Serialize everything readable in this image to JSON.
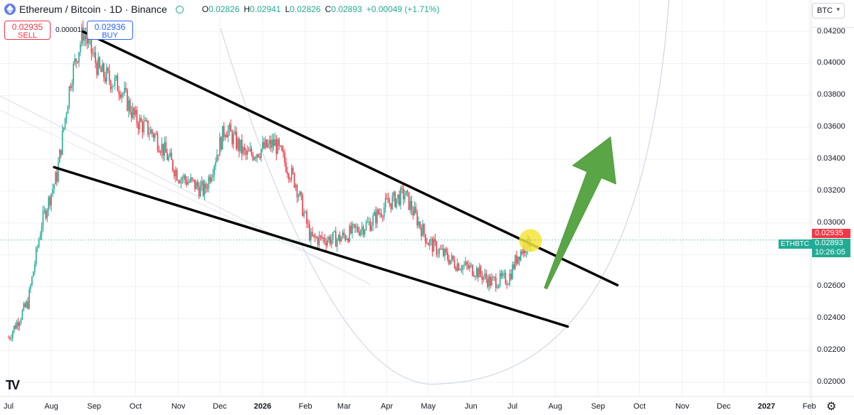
{
  "header": {
    "symbol_title": "Ethereum / Bitcoin · 1D · Binance",
    "ohlc": {
      "o_label": "O",
      "o": "0.02826",
      "h_label": "H",
      "h": "0.02941",
      "l_label": "L",
      "l": "0.02826",
      "c_label": "C",
      "c": "0.02893",
      "change": "+0.00049 (+1.71%)"
    },
    "icon": "ethereum-icon"
  },
  "trade": {
    "sell_price": "0.02935",
    "sell_label": "SELL",
    "spread": "0.00001",
    "buy_price": "0.02936",
    "buy_label": "BUY"
  },
  "currency": {
    "label": "BTC"
  },
  "price_tags": {
    "symbol": "ETHBTC",
    "last": "0.02893",
    "countdown": "10:26:05",
    "ask": "0.02935"
  },
  "colors": {
    "up": "#22ab94",
    "down": "#f23645",
    "arrow": "#5aa646",
    "highlight": "#f5e53a",
    "grid": "#eef1f6",
    "trendline": "#000000"
  },
  "chart_data": {
    "type": "candlestick",
    "title": "Ethereum / Bitcoin · 1D · Binance",
    "y_axis": {
      "ticks": [
        "0.04200",
        "0.04000",
        "0.03800",
        "0.03600",
        "0.03400",
        "0.03200",
        "0.03000",
        "0.02800",
        "0.02600",
        "0.02400",
        "0.02200",
        "0.02000"
      ],
      "range": [
        0.0192,
        0.0439
      ]
    },
    "x_axis": {
      "ticks": [
        "Jul",
        "Aug",
        "Sep",
        "Oct",
        "Nov",
        "Dec",
        "2026",
        "Feb",
        "Mar",
        "Apr",
        "May",
        "Jun",
        "Jul",
        "Aug",
        "Sep",
        "Oct",
        "Nov",
        "Dec",
        "2027",
        "Feb"
      ],
      "start": "2025-07-01"
    },
    "series": [
      {
        "name": "ETHBTC",
        "key_points": [
          {
            "date": "2025-07-01",
            "close": 0.0228
          },
          {
            "date": "2025-07-15",
            "close": 0.025
          },
          {
            "date": "2025-07-25",
            "close": 0.03
          },
          {
            "date": "2025-08-05",
            "close": 0.033
          },
          {
            "date": "2025-08-15",
            "close": 0.039
          },
          {
            "date": "2025-08-24",
            "close": 0.042
          },
          {
            "date": "2025-09-05",
            "close": 0.0395
          },
          {
            "date": "2025-09-20",
            "close": 0.0385
          },
          {
            "date": "2025-10-01",
            "close": 0.0365
          },
          {
            "date": "2025-10-15",
            "close": 0.0355
          },
          {
            "date": "2025-11-01",
            "close": 0.033
          },
          {
            "date": "2025-11-20",
            "close": 0.032
          },
          {
            "date": "2025-12-05",
            "close": 0.036
          },
          {
            "date": "2025-12-20",
            "close": 0.0342
          },
          {
            "date": "2026-01-10",
            "close": 0.035
          },
          {
            "date": "2026-01-25",
            "close": 0.0325
          },
          {
            "date": "2026-02-05",
            "close": 0.029
          },
          {
            "date": "2026-02-25",
            "close": 0.029
          },
          {
            "date": "2026-03-20",
            "close": 0.03
          },
          {
            "date": "2026-04-01",
            "close": 0.0312
          },
          {
            "date": "2026-04-14",
            "close": 0.0318
          },
          {
            "date": "2026-05-01",
            "close": 0.0288
          },
          {
            "date": "2026-05-20",
            "close": 0.0275
          },
          {
            "date": "2026-06-05",
            "close": 0.027
          },
          {
            "date": "2026-06-15",
            "close": 0.0263
          },
          {
            "date": "2026-06-28",
            "close": 0.0265
          },
          {
            "date": "2026-07-05",
            "close": 0.028
          },
          {
            "date": "2026-07-14",
            "close": 0.02893
          }
        ],
        "last": {
          "open": 0.02826,
          "high": 0.02941,
          "low": 0.02826,
          "close": 0.02893
        }
      }
    ],
    "annotations": {
      "trendlines": [
        {
          "type": "upper",
          "from": {
            "date": "2025-08-24",
            "price": 0.042
          },
          "to": {
            "date": "2026-09-15",
            "price": 0.0261
          }
        },
        {
          "type": "lower",
          "from": {
            "date": "2025-08-03",
            "price": 0.0335
          },
          "to": {
            "date": "2026-08-10",
            "price": 0.0235
          }
        }
      ],
      "arrow": {
        "from": {
          "date": "2026-07-25",
          "price": 0.0259
        },
        "to": {
          "date": "2026-09-10",
          "price": 0.0354
        }
      },
      "highlight": {
        "date": "2026-07-14",
        "price": 0.0289
      }
    },
    "last_price_line": 0.02893,
    "grid": true
  },
  "footer": {
    "logo": "TV",
    "settings_icon": "gear-icon"
  }
}
